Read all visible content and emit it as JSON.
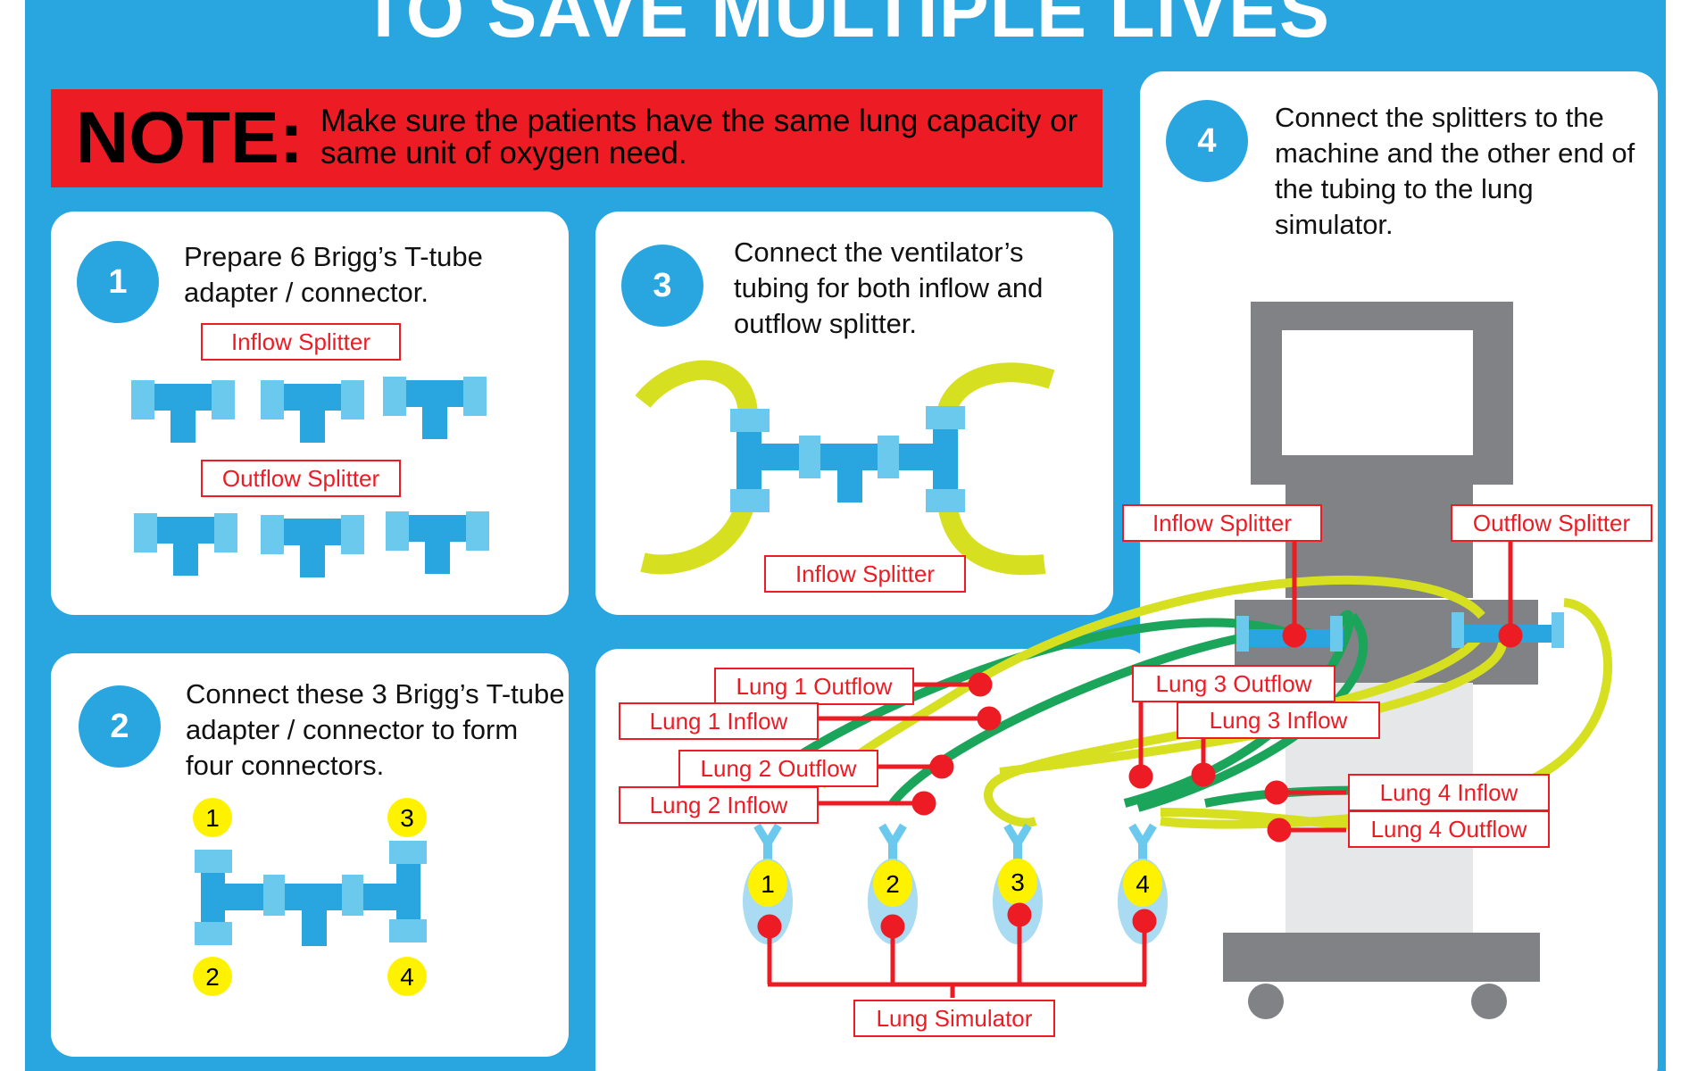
{
  "title": "TO SAVE MULTIPLE LIVES",
  "note": {
    "heading": "NOTE:",
    "text": "Make sure the patients have the same lung capacity or same unit of oxygen need."
  },
  "steps": [
    {
      "number": "1",
      "text": "Prepare 6 Brigg’s T-tube adapter / connector."
    },
    {
      "number": "2",
      "text": "Connect these 3 Brigg’s T-tube adapter / connector to form four connectors."
    },
    {
      "number": "3",
      "text": "Connect the ventilator’s tubing for both inflow and outflow splitter."
    },
    {
      "number": "4",
      "text": "Connect the splitters to the machine and the other end of the tubing to the lung simulator."
    }
  ],
  "step1_labels": {
    "inflow": "Inflow Splitter",
    "outflow": "Outflow Splitter"
  },
  "step2_ports": [
    "1",
    "2",
    "3",
    "4"
  ],
  "step3_label": "Inflow Splitter",
  "step4_labels": {
    "inflow": "Inflow Splitter",
    "outflow": "Outflow Splitter"
  },
  "lung_labels": {
    "lung1_outflow": "Lung 1 Outflow",
    "lung1_inflow": "Lung 1 Inflow",
    "lung2_outflow": "Lung 2 Outflow",
    "lung2_inflow": "Lung 2 Inflow",
    "lung3_outflow": "Lung 3 Outflow",
    "lung3_inflow": "Lung 3 Inflow",
    "lung4_inflow": "Lung 4 Inflow",
    "lung4_outflow": "Lung 4 Outflow",
    "simulator": "Lung Simulator"
  },
  "lung_numbers": [
    "1",
    "2",
    "3",
    "4"
  ],
  "colors": {
    "background": "#29a6e0",
    "note": "#ed1c24",
    "tube_connector": "#29a6e0",
    "connector_sleeve": "#6cc9ee",
    "inflow_tube": "#d6e021",
    "outflow_tube": "#1aa55a",
    "ventilator": "#808285",
    "label": "#ed1c24",
    "port_marker": "#fff200"
  }
}
